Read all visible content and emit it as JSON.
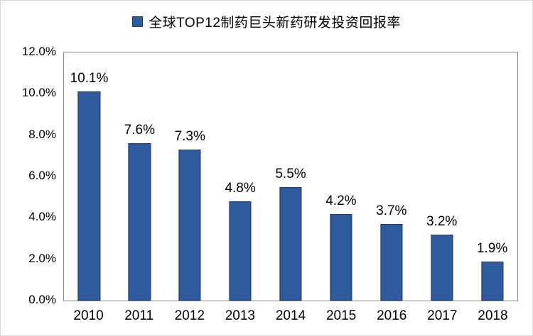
{
  "legend": {
    "label": "全球TOP12制药巨头新药研发投资回报率"
  },
  "colors": {
    "bar_fill": "#2E5B9E",
    "bar_border": "#1F3864",
    "plot_border": "#898989",
    "text": "#000000"
  },
  "chart_data": {
    "type": "bar",
    "title": "全球TOP12制药巨头新药研发投资回报率",
    "categories": [
      "2010",
      "2011",
      "2012",
      "2013",
      "2014",
      "2015",
      "2016",
      "2017",
      "2018"
    ],
    "values": [
      10.1,
      7.6,
      7.3,
      4.8,
      5.5,
      4.2,
      3.7,
      3.2,
      1.9
    ],
    "data_labels": [
      "10.1%",
      "7.6%",
      "7.3%",
      "4.8%",
      "5.5%",
      "4.2%",
      "3.7%",
      "3.2%",
      "1.9%"
    ],
    "xlabel": "",
    "ylabel": "",
    "ylim": [
      0,
      12
    ],
    "ytick_labels": [
      "12.0%",
      "10.0%",
      "8.0%",
      "6.0%",
      "4.0%",
      "2.0%",
      "0.0%"
    ],
    "grid": false,
    "legend_position": "top"
  }
}
